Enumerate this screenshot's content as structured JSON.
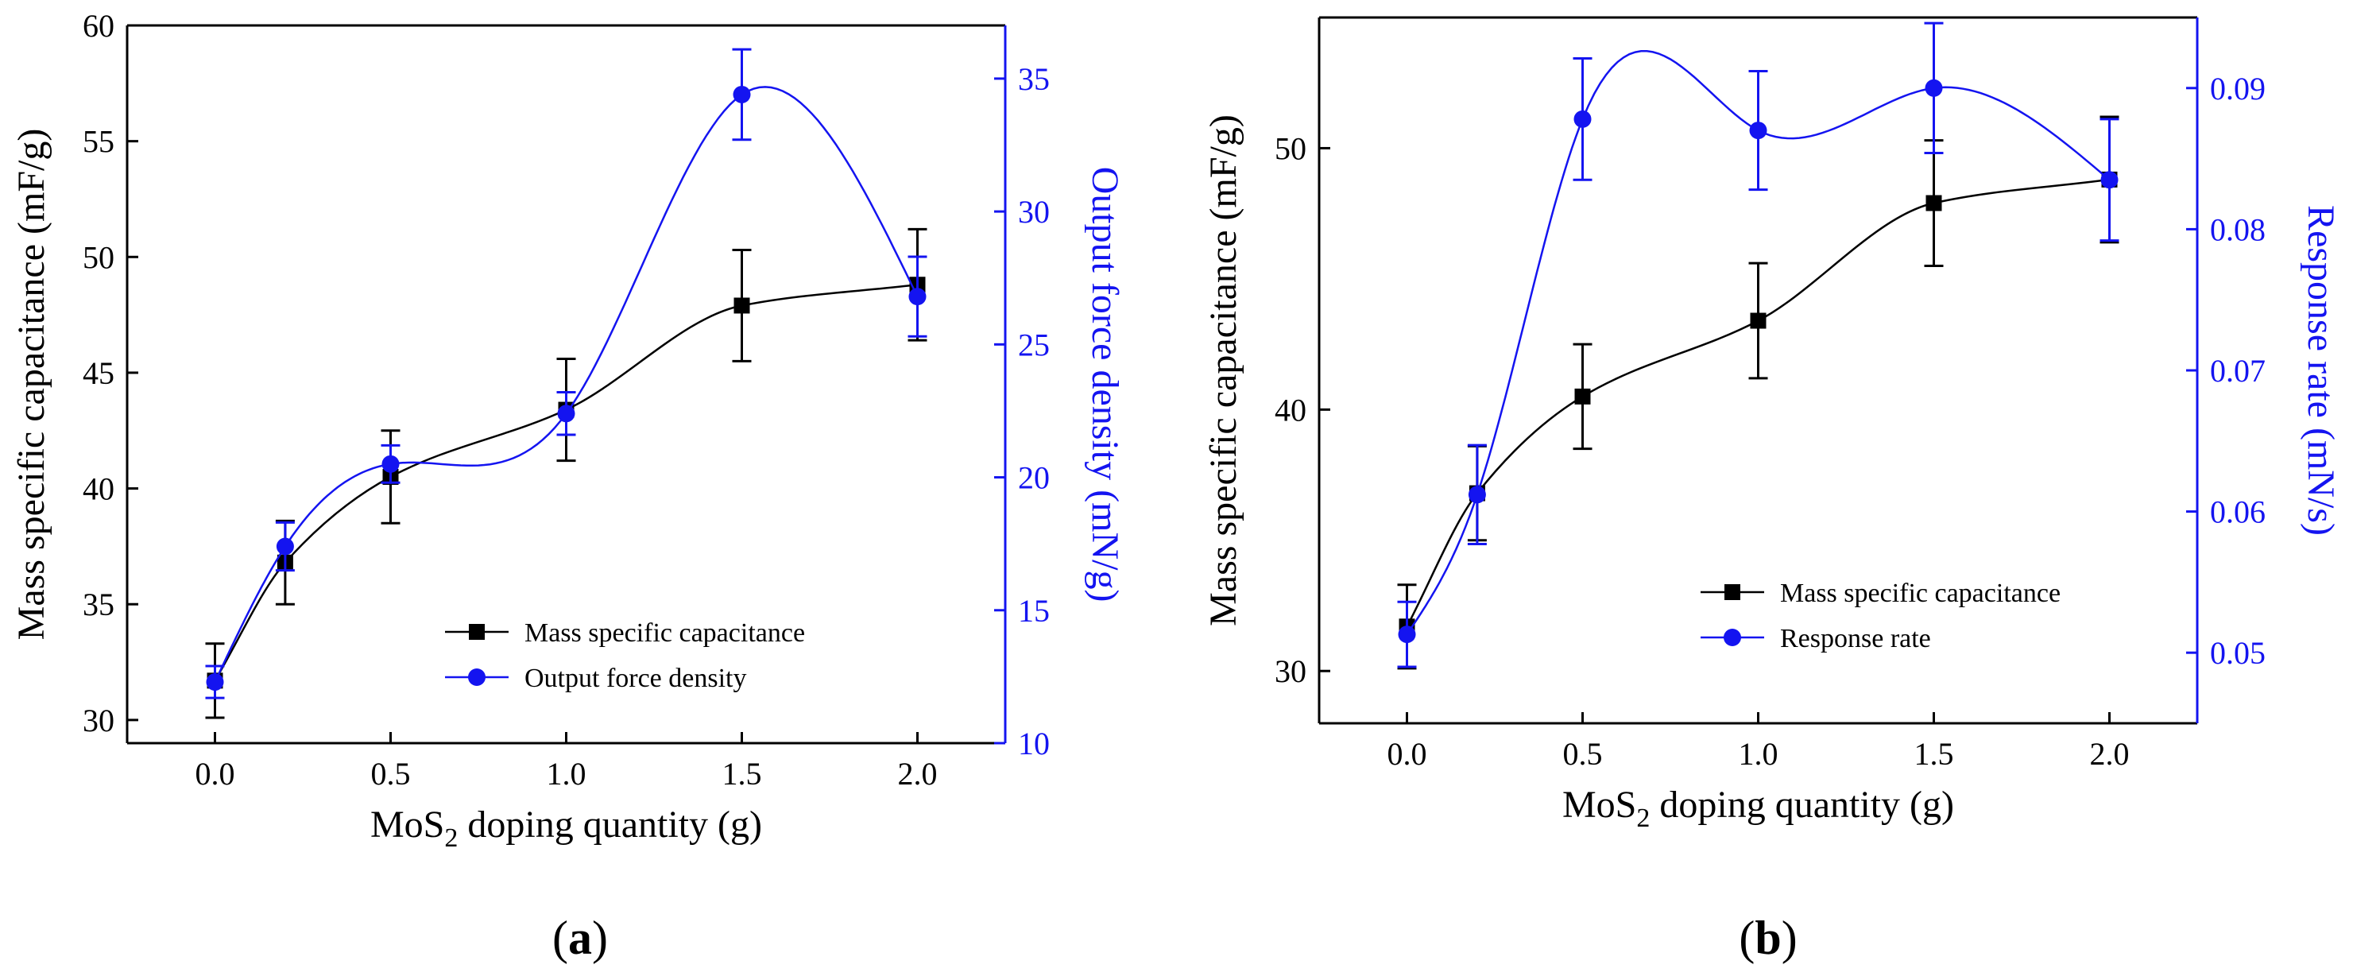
{
  "panel_labels": [
    "(a)",
    "(b)"
  ],
  "chart_data": [
    {
      "type": "line",
      "panel": "(a)",
      "xlabel": "MoS2 doping  quantity (g)",
      "xlabel_parts": {
        "base": "MoS",
        "sub": "2",
        "rest": " doping  quantity (g)"
      },
      "ylabel_left": "Mass specific capacitance (mF/g)",
      "ylabel_right": "Output force density (mN/g)",
      "xlim": [
        -0.25,
        2.25
      ],
      "ylim_left": [
        29,
        60
      ],
      "ylim_right": [
        10,
        37
      ],
      "x_ticks": [
        "0.0",
        "0.5",
        "1.0",
        "1.5",
        "2.0"
      ],
      "y_ticks_left": [
        "30",
        "35",
        "40",
        "45",
        "50",
        "55",
        "60"
      ],
      "y_ticks_right": [
        "10",
        "15",
        "20",
        "25",
        "30",
        "35"
      ],
      "legend_position": "bottom-right",
      "series": [
        {
          "name": "Mass specific capacitance",
          "axis": "left",
          "color": "#000000",
          "marker": "square",
          "x": [
            0.0,
            0.2,
            0.5,
            1.0,
            1.5,
            2.0
          ],
          "y": [
            31.7,
            36.8,
            40.5,
            43.4,
            47.9,
            48.8
          ],
          "err": [
            1.6,
            1.8,
            2.0,
            2.2,
            2.4,
            2.4
          ]
        },
        {
          "name": "Output force density",
          "axis": "right",
          "color": "#1414f0",
          "marker": "circle",
          "x": [
            0.0,
            0.2,
            0.5,
            1.0,
            1.5,
            2.0
          ],
          "y": [
            12.3,
            17.4,
            20.5,
            22.4,
            34.4,
            26.8
          ],
          "err": [
            0.6,
            0.9,
            0.7,
            0.8,
            1.7,
            1.5
          ]
        }
      ]
    },
    {
      "type": "line",
      "panel": "(b)",
      "xlabel": "MoS2 doping  quantity (g)",
      "xlabel_parts": {
        "base": "MoS",
        "sub": "2",
        "rest": " doping  quantity (g)"
      },
      "ylabel_left": "Mass specific capacitance (mF/g)",
      "ylabel_right": "Response rate (mN/s)",
      "xlim": [
        -0.25,
        2.25
      ],
      "ylim_left": [
        28,
        55
      ],
      "ylim_right": [
        0.045,
        0.095
      ],
      "x_ticks": [
        "0.0",
        "0.5",
        "1.0",
        "1.5",
        "2.0"
      ],
      "y_ticks_left": [
        "30",
        "40",
        "50"
      ],
      "y_ticks_right": [
        "0.05",
        "0.06",
        "0.07",
        "0.08",
        "0.09"
      ],
      "legend_position": "bottom-right",
      "series": [
        {
          "name": "Mass specific capacitance",
          "axis": "left",
          "color": "#000000",
          "marker": "square",
          "x": [
            0.0,
            0.2,
            0.5,
            1.0,
            1.5,
            2.0
          ],
          "y": [
            31.7,
            36.8,
            40.5,
            43.4,
            47.9,
            48.8
          ],
          "err": [
            1.6,
            1.8,
            2.0,
            2.2,
            2.4,
            2.4
          ]
        },
        {
          "name": "Response rate",
          "axis": "right",
          "color": "#1414f0",
          "marker": "circle",
          "x": [
            0.0,
            0.2,
            0.5,
            1.0,
            1.5,
            2.0
          ],
          "y": [
            0.0513,
            0.0612,
            0.0878,
            0.087,
            0.09,
            0.0835
          ],
          "err": [
            0.0023,
            0.0035,
            0.0043,
            0.0042,
            0.0046,
            0.0043
          ]
        }
      ]
    }
  ]
}
